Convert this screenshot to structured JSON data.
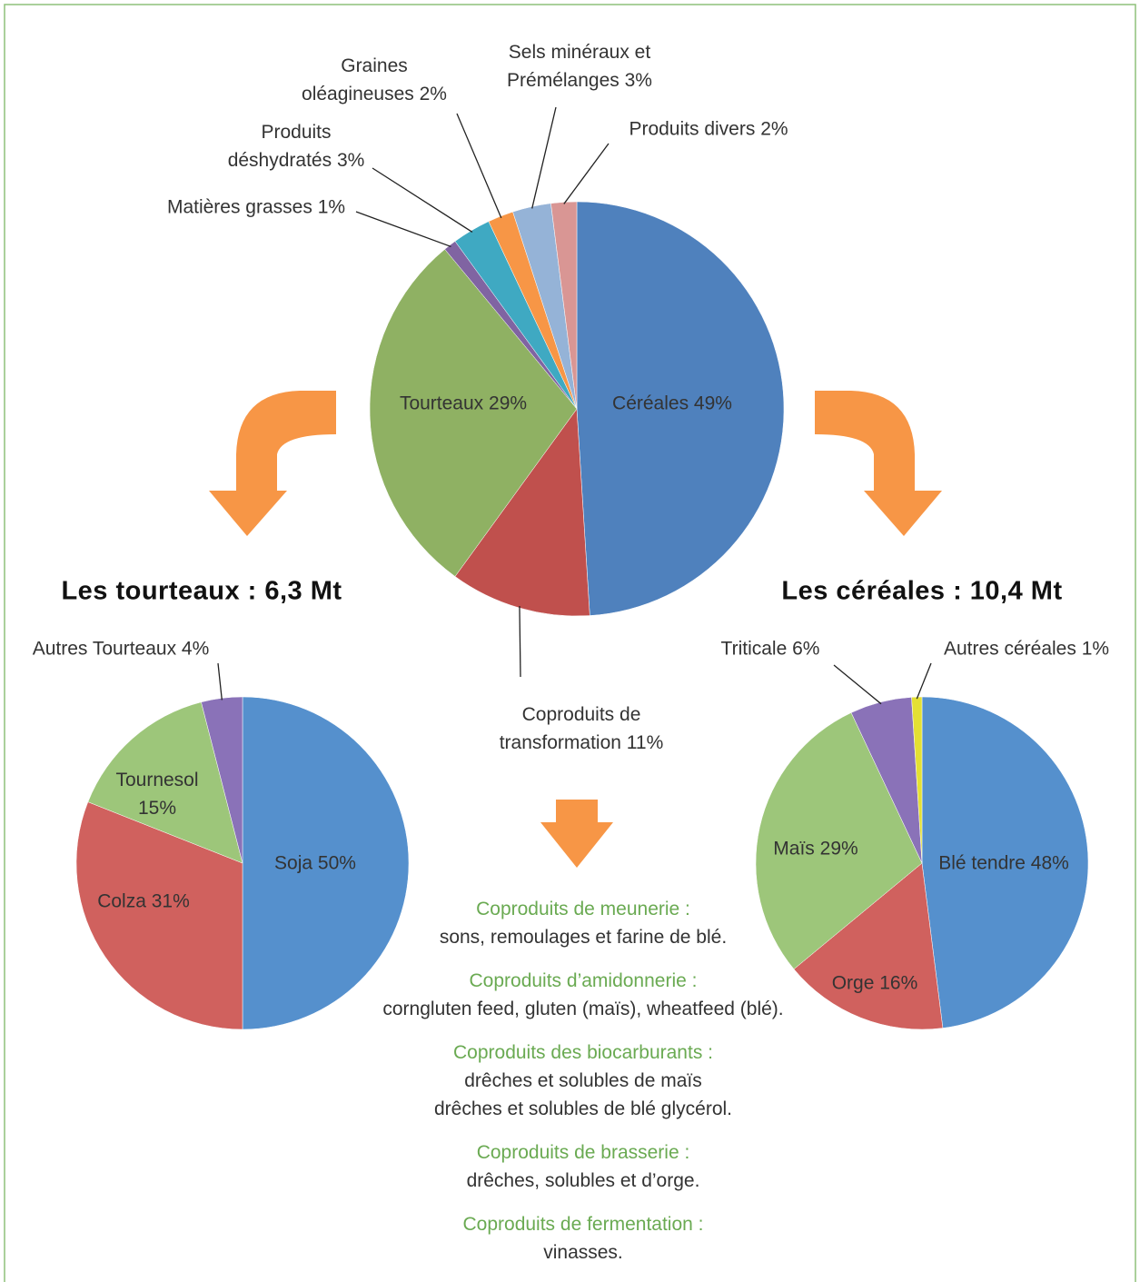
{
  "chart_data": [
    {
      "type": "pie",
      "categories": [
        "Céréales",
        "Coproduits de transformation",
        "Tourteaux",
        "Matières grasses",
        "Produits déshydratés",
        "Graines oléagineuses",
        "Sels minéraux et Prémélanges",
        "Produits divers"
      ],
      "values": [
        49,
        11,
        29,
        1,
        3,
        2,
        3,
        2
      ],
      "value_labels": [
        "49%",
        "11%",
        "29%",
        "1%",
        "3%",
        "2%",
        "3%",
        "2%"
      ],
      "colors": [
        "#4f81bd",
        "#c0504d",
        "#8fb163",
        "#8064a2",
        "#3fa9c2",
        "#f79646",
        "#95b3d7",
        "#d99694"
      ]
    },
    {
      "type": "pie",
      "title": "Les tourteaux : 6,3 Mt",
      "categories": [
        "Soja",
        "Colza",
        "Tournesol",
        "Autres Tourteaux"
      ],
      "values": [
        50,
        31,
        15,
        4
      ],
      "value_labels": [
        "50%",
        "31%",
        "15%",
        "4%"
      ],
      "colors": [
        "#5590cd",
        "#d0615e",
        "#9dc67a",
        "#8a72b8"
      ]
    },
    {
      "type": "pie",
      "title": "Les céréales : 10,4 Mt",
      "categories": [
        "Blé tendre",
        "Orge",
        "Maïs",
        "Triticale",
        "Autres céréales"
      ],
      "values": [
        48,
        16,
        29,
        6,
        1
      ],
      "value_labels": [
        "48%",
        "16%",
        "29%",
        "6%",
        "1%"
      ],
      "colors": [
        "#5590cd",
        "#d0615e",
        "#9dc67a",
        "#8a72b8",
        "#e4e033"
      ]
    }
  ],
  "coproducts": [
    {
      "title": "Coproduits de meunerie :",
      "lines": [
        "sons, remoulages et farine de blé."
      ]
    },
    {
      "title": "Coproduits d’amidonnerie :",
      "lines": [
        "corngluten feed,  gluten (maïs), wheatfeed (blé)."
      ]
    },
    {
      "title": "Coproduits des biocarburants :",
      "lines": [
        "drêches et solubles de maïs",
        "drêches et solubles de blé glycérol."
      ]
    },
    {
      "title": "Coproduits de brasserie :",
      "lines": [
        "drêches, solubles et d’orge."
      ]
    },
    {
      "title": "Coproduits de fermentation :",
      "lines": [
        "vinasses."
      ]
    }
  ]
}
